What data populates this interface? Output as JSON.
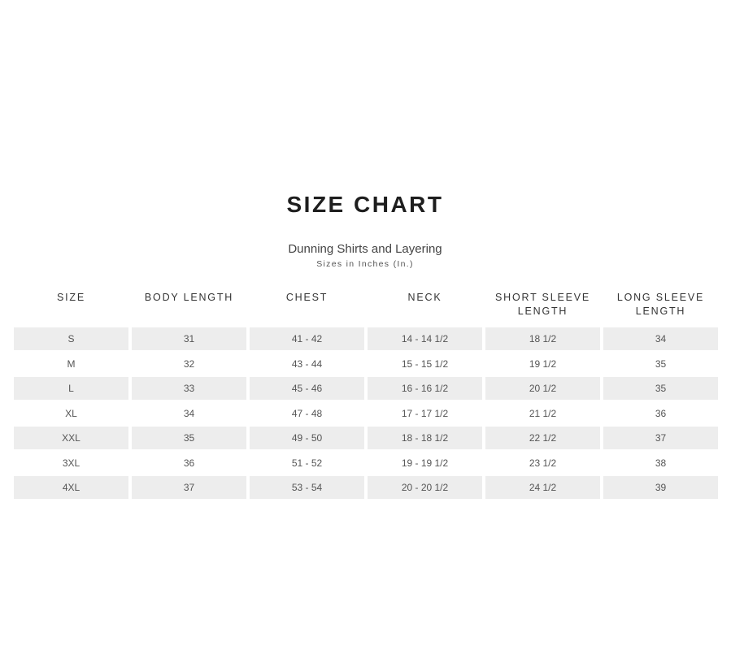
{
  "title": "SIZE CHART",
  "subtitle": "Dunning Shirts and Layering",
  "units": "Sizes in Inches (In.)",
  "table": {
    "headers": [
      "SIZE",
      "BODY LENGTH",
      "CHEST",
      "NECK",
      "SHORT SLEEVE LENGTH",
      "LONG SLEEVE LENGTH"
    ],
    "rows": [
      [
        "S",
        "31",
        "41 - 42",
        "14 - 14 1/2",
        "18 1/2",
        "34"
      ],
      [
        "M",
        "32",
        "43 - 44",
        "15 - 15 1/2",
        "19 1/2",
        "35"
      ],
      [
        "L",
        "33",
        "45 - 46",
        "16 - 16 1/2",
        "20 1/2",
        "35"
      ],
      [
        "XL",
        "34",
        "47 - 48",
        "17 - 17 1/2",
        "21 1/2",
        "36"
      ],
      [
        "XXL",
        "35",
        "49 - 50",
        "18 - 18 1/2",
        "22 1/2",
        "37"
      ],
      [
        "3XL",
        "36",
        "51 - 52",
        "19 - 19 1/2",
        "23 1/2",
        "38"
      ],
      [
        "4XL",
        "37",
        "53 - 54",
        "20 - 20 1/2",
        "24 1/2",
        "39"
      ]
    ]
  }
}
